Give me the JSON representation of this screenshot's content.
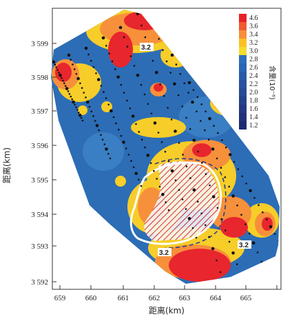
{
  "map": {
    "x_axis": {
      "label": "距离(km)",
      "ticks": [
        "659",
        "660",
        "661",
        "662",
        "663",
        "664",
        "665"
      ]
    },
    "y_axis": {
      "label": "距离(km)",
      "ticks": [
        "3 592",
        "3 593",
        "3 594",
        "3 595",
        "3 596",
        "3 597",
        "3 598",
        "3 599"
      ]
    },
    "legend": {
      "title": "含量(10⁻⁶)",
      "values": [
        "4.6",
        "3.6",
        "3.4",
        "3.2",
        "3.0",
        "2.8",
        "2.6",
        "2.4",
        "2.2",
        "2.0",
        "1.8",
        "1.6",
        "1.4",
        "1.2"
      ],
      "colors": [
        "#e8202a",
        "#f05a32",
        "#f78e3c",
        "#fbc126",
        "#f5dd2c",
        "#2f6fba",
        "#2a66b4",
        "#2a5aa8",
        "#28509e",
        "#284a95",
        "#25418b",
        "#233983",
        "#21327a",
        "#1e2a70"
      ]
    },
    "contour_labels": [
      "3.2",
      "3.2",
      "3.2"
    ],
    "colors": {
      "background_blue": "#2c6db6",
      "yellow": "#f6cd29",
      "orange": "#f7903a",
      "red": "#e8262d",
      "sample_point": "#111111",
      "outline": "#ffffff"
    }
  }
}
